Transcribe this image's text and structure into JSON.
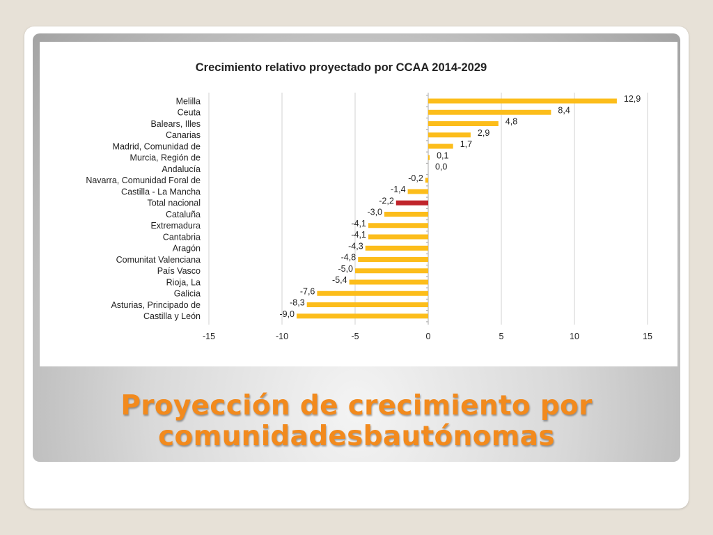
{
  "slide_title_line1": "Proyección de crecimiento por",
  "slide_title_line2": "comunidadesbautónomas",
  "colors": {
    "bar": "#fcbd1b",
    "highlight_bar": "#c0242b",
    "title_text": "#f28a1d"
  },
  "chart_data": {
    "type": "bar",
    "orientation": "horizontal",
    "title": "Crecimiento relativo proyectado por CCAA 2014-2029",
    "xlabel": "",
    "ylabel": "",
    "xlim": [
      -15,
      15
    ],
    "x_ticks": [
      -15,
      -10,
      -5,
      0,
      5,
      10,
      15
    ],
    "grid": "vertical",
    "legend": "none",
    "highlight_category": "Total nacional",
    "categories": [
      "Melilla",
      "Ceuta",
      "Balears, Illes",
      "Canarias",
      "Madrid, Comunidad de",
      "Murcia, Región de",
      "Andalucía",
      "Navarra, Comunidad Foral de",
      "Castilla - La Mancha",
      "Total nacional",
      "Cataluña",
      "Extremadura",
      "Cantabria",
      "Aragón",
      "Comunitat Valenciana",
      "País Vasco",
      "Rioja, La",
      "Galicia",
      "Asturias, Principado de",
      "Castilla y León"
    ],
    "values": [
      12.9,
      8.4,
      4.8,
      2.9,
      1.7,
      0.1,
      0.0,
      -0.2,
      -1.4,
      -2.2,
      -3.0,
      -4.1,
      -4.1,
      -4.3,
      -4.8,
      -5.0,
      -5.4,
      -7.6,
      -8.3,
      -9.0
    ],
    "value_labels": [
      "12,9",
      "8,4",
      "4,8",
      "2,9",
      "1,7",
      "0,1",
      "0,0",
      "-0,2",
      "-1,4",
      "-2,2",
      "-3,0",
      "-4,1",
      "-4,1",
      "-4,3",
      "-4,8",
      "-5,0",
      "-5,4",
      "-7,6",
      "-8,3",
      "-9,0"
    ]
  }
}
